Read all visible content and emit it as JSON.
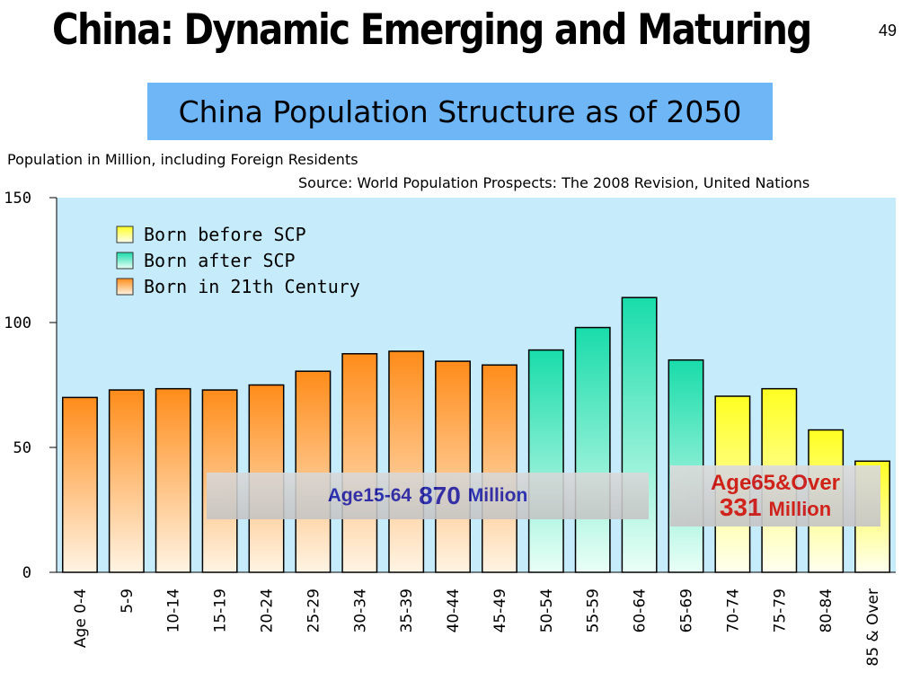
{
  "slide": {
    "title": "China: Dynamic Emerging and Maturing",
    "page_number": "49"
  },
  "chart_banner": "China Population Structure as of 2050",
  "callouts": {
    "working_age": {
      "label": "Age15-64",
      "value": "870",
      "unit": "Million"
    },
    "elderly": {
      "label": "Age65&Over",
      "value": "331",
      "unit": "Million"
    }
  },
  "colors": {
    "plot_background": "#c6ecfb",
    "born_before_scp": "#ffff33",
    "born_after_scp": "#22ddb0",
    "born_21th_century": "#ff9a2a"
  },
  "chart_data": {
    "type": "bar",
    "title": "China Population Structure as of 2050",
    "subtitle": "Population in Million, including Foreign Residents",
    "source": "Source: World Population Prospects: The 2008 Revision, United Nations",
    "categories": [
      "Age 0-4",
      "5-9",
      "10-14",
      "15-19",
      "20-24",
      "25-29",
      "30-34",
      "35-39",
      "40-44",
      "45-49",
      "50-54",
      "55-59",
      "60-64",
      "65-69",
      "70-74",
      "75-79",
      "80-84",
      "85 & Over"
    ],
    "values": [
      70,
      73,
      73.5,
      73,
      75,
      80.5,
      87.5,
      88.5,
      84.5,
      83,
      89,
      98,
      110,
      85,
      70.5,
      73.5,
      57,
      44.5
    ],
    "groups": [
      "Born in 21th Century",
      "Born in 21th Century",
      "Born in 21th Century",
      "Born in 21th Century",
      "Born in 21th Century",
      "Born in 21th Century",
      "Born in 21th Century",
      "Born in 21th Century",
      "Born in 21th Century",
      "Born in 21th Century",
      "Born after SCP",
      "Born after SCP",
      "Born after SCP",
      "Born after SCP",
      "Born before SCP",
      "Born before SCP",
      "Born before SCP",
      "Born before SCP"
    ],
    "legend": [
      "Born before SCP",
      "Born after SCP",
      "Born in 21th Century"
    ],
    "legend_position": "top-left",
    "ylim": [
      0,
      150
    ],
    "yticks": [
      0,
      50,
      100,
      150
    ],
    "grid": false
  }
}
